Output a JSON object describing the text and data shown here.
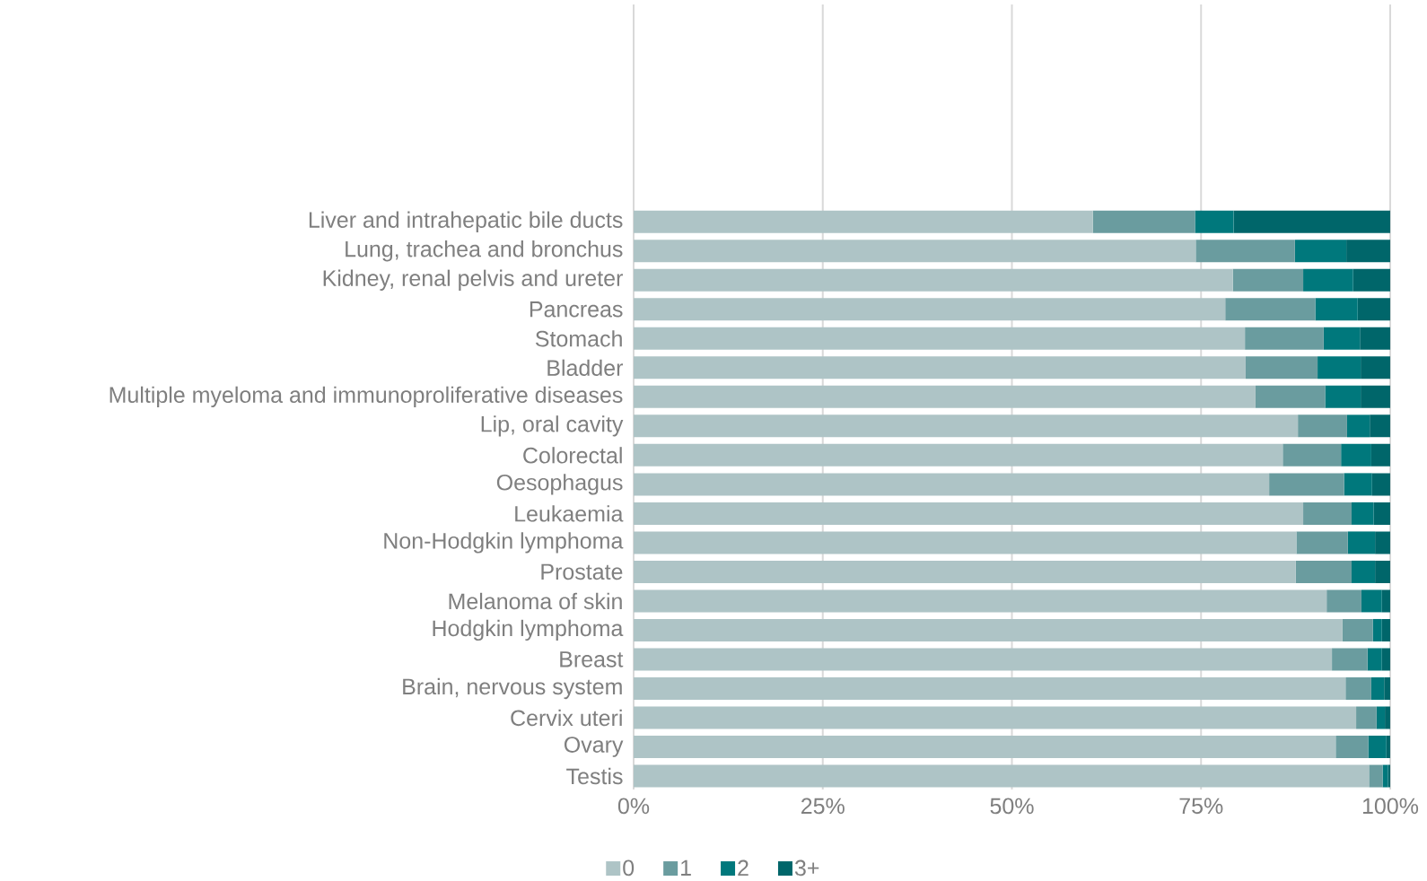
{
  "chart_data": {
    "type": "bar",
    "orientation": "horizontal",
    "stacked": true,
    "categories": [
      "Liver and intrahepatic bile ducts",
      "Lung, trachea and bronchus",
      "Kidney, renal pelvis and ureter",
      "Pancreas",
      "Stomach",
      "Bladder",
      "Multiple myeloma and immunoproliferative diseases",
      "Lip, oral cavity",
      "Colorectal",
      "Oesophagus",
      "Leukaemia",
      "Non-Hodgkin lymphoma",
      "Prostate",
      "Melanoma of skin",
      "Hodgkin lymphoma",
      "Breast",
      "Brain, nervous system",
      "Cervix uteri",
      "Ovary",
      "Testis"
    ],
    "series": [
      {
        "name": "0",
        "color": "#aec4c6",
        "values": [
          60.7,
          74.3,
          79.2,
          78.2,
          80.8,
          80.9,
          82.2,
          87.8,
          85.8,
          84.0,
          88.5,
          87.6,
          87.5,
          91.6,
          93.7,
          92.3,
          94.1,
          95.5,
          92.8,
          97.2
        ]
      },
      {
        "name": "1",
        "color": "#6a9c9f",
        "values": [
          13.5,
          13.1,
          9.3,
          11.9,
          10.4,
          9.5,
          9.2,
          6.5,
          7.7,
          9.9,
          6.4,
          6.8,
          7.4,
          4.6,
          4.0,
          4.7,
          3.4,
          2.7,
          4.3,
          1.8
        ]
      },
      {
        "name": "2",
        "color": "#00787c",
        "values": [
          5.1,
          6.8,
          6.6,
          5.6,
          4.8,
          5.7,
          4.7,
          3.0,
          4.0,
          3.7,
          2.9,
          3.6,
          3.1,
          2.7,
          1.2,
          1.9,
          1.7,
          1.1,
          2.4,
          0.7
        ]
      },
      {
        "name": "3+",
        "color": "#00666a",
        "values": [
          20.7,
          5.8,
          4.9,
          4.3,
          4.0,
          3.9,
          3.9,
          2.7,
          2.5,
          2.4,
          2.2,
          2.0,
          2.0,
          1.1,
          1.1,
          1.1,
          0.8,
          0.7,
          0.5,
          0.3
        ]
      }
    ],
    "xlim": [
      0,
      100
    ],
    "xticks": [
      {
        "value": 0,
        "label": "0%"
      },
      {
        "value": 25,
        "label": "25%"
      },
      {
        "value": 50,
        "label": "50%"
      },
      {
        "value": 75,
        "label": "75%"
      },
      {
        "value": 100,
        "label": "100%"
      }
    ],
    "grid": "x",
    "legend": "bottom"
  }
}
